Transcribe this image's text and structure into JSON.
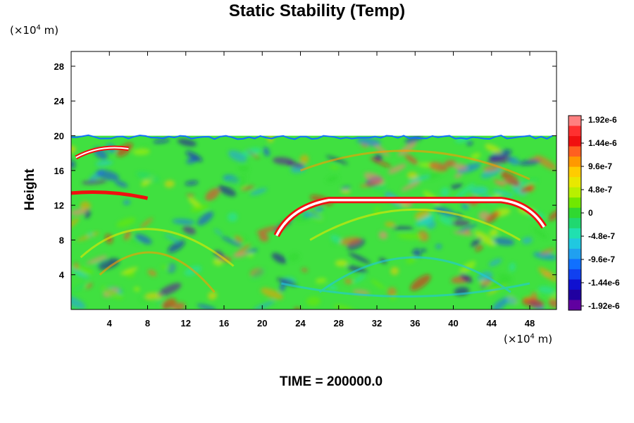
{
  "chart_data": {
    "type": "heatmap",
    "title": "Static Stability (Temp)",
    "xlabel": "",
    "ylabel": "Height",
    "x_unit": "(×10⁴ m)",
    "y_unit": "(×10⁴ m)",
    "x_ticks": [
      4,
      8,
      12,
      16,
      20,
      24,
      28,
      32,
      36,
      40,
      44,
      48
    ],
    "y_ticks": [
      4,
      8,
      12,
      16,
      20,
      24,
      28
    ],
    "xlim": [
      0,
      50.8
    ],
    "ylim": [
      0,
      29.7
    ],
    "field_top": 20,
    "colorbar": {
      "ticks": [
        "1.92e-6",
        "1.44e-6",
        "9.6e-7",
        "4.8e-7",
        "0",
        "-4.8e-7",
        "-9.6e-7",
        "-1.44e-6",
        "-1.92e-6"
      ],
      "colors": [
        "#ff8080",
        "#ff3030",
        "#f01010",
        "#ff6020",
        "#ff9900",
        "#ffcc00",
        "#e8e800",
        "#b8f000",
        "#70e800",
        "#30d830",
        "#20d870",
        "#20e0b0",
        "#20c8e0",
        "#20a0f0",
        "#1070ff",
        "#1040f0",
        "#1010d0",
        "#2000a0",
        "#6000a0"
      ],
      "dominant_color": "#40e040"
    },
    "features": [
      {
        "name": "stable layer",
        "x_range": [
          22,
          49
        ],
        "y": 12.6,
        "sign": "positive"
      },
      {
        "name": "upper boundary",
        "y": 20
      }
    ]
  },
  "footer": {
    "time_label": "TIME = 200000.0"
  }
}
